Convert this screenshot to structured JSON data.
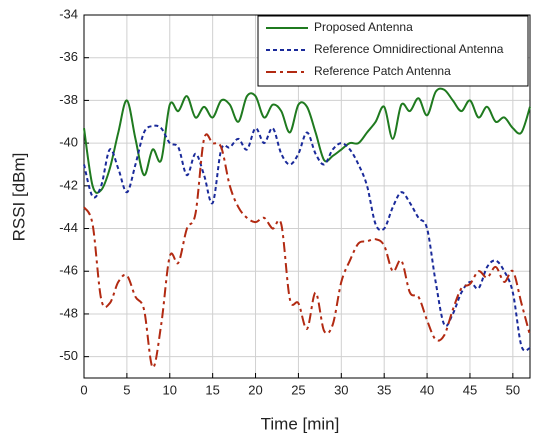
{
  "chart_data": {
    "type": "line",
    "xlabel": "Time [min]",
    "ylabel": "RSSI [dBm]",
    "x": [
      0,
      1,
      2,
      3,
      4,
      5,
      6,
      7,
      8,
      9,
      10,
      11,
      12,
      13,
      14,
      15,
      16,
      17,
      18,
      19,
      20,
      21,
      22,
      23,
      24,
      25,
      26,
      27,
      28,
      29,
      30,
      31,
      32,
      33,
      34,
      35,
      36,
      37,
      38,
      39,
      40,
      41,
      42,
      43,
      44,
      45,
      46,
      47,
      48,
      49,
      50,
      51,
      52
    ],
    "series": [
      {
        "name": "Proposed Antenna",
        "color": "#1f7a1f",
        "dash": "none",
        "values": [
          -39.3,
          -42,
          -42.2,
          -41.2,
          -39.5,
          -38,
          -39.8,
          -41.5,
          -40.3,
          -40.8,
          -38.2,
          -38.5,
          -37.8,
          -38.8,
          -38.3,
          -38.8,
          -38,
          -38.2,
          -39,
          -37.8,
          -37.8,
          -38.8,
          -38.2,
          -38.5,
          -39.5,
          -38.2,
          -38.3,
          -39.5,
          -40.8,
          -40.6,
          -40.3,
          -40,
          -40,
          -39.5,
          -39,
          -38.3,
          -39.8,
          -38.2,
          -38.5,
          -37.9,
          -38.7,
          -37.6,
          -37.5,
          -38,
          -38.5,
          -38,
          -38.8,
          -38.3,
          -39,
          -38.8,
          -39.3,
          -39.5,
          -38.3
        ]
      },
      {
        "name": "Reference Omnidirectional Antenna",
        "color": "#1a2a9a",
        "dash": "4 3",
        "values": [
          -41,
          -42.5,
          -42,
          -40.3,
          -41.2,
          -42.3,
          -41,
          -39.5,
          -39.2,
          -39.3,
          -40,
          -40.2,
          -41.5,
          -40.5,
          -41.5,
          -42.8,
          -40.3,
          -40.2,
          -39.8,
          -40.3,
          -39.3,
          -40,
          -39.3,
          -40.5,
          -41,
          -40.5,
          -39.5,
          -40.5,
          -41,
          -40.3,
          -40,
          -40.3,
          -41,
          -42,
          -43.8,
          -44,
          -43,
          -42.3,
          -42.8,
          -43.5,
          -44,
          -46.5,
          -48.5,
          -48,
          -47,
          -46.5,
          -46.8,
          -45.8,
          -45.5,
          -46,
          -47,
          -49.5,
          -49.6
        ]
      },
      {
        "name": "Reference Patch Antenna",
        "color": "#b22a12",
        "dash": "10 4 3 4",
        "values": [
          -43,
          -43.8,
          -47.3,
          -47.5,
          -46.5,
          -46.2,
          -47.2,
          -47.8,
          -50.5,
          -48.5,
          -45.3,
          -45.6,
          -44,
          -43.3,
          -39.8,
          -40,
          -40.2,
          -42,
          -43,
          -43.5,
          -43.7,
          -43.5,
          -44,
          -43.8,
          -47.3,
          -47.5,
          -48.7,
          -47,
          -48.8,
          -48.5,
          -46.5,
          -45.5,
          -44.7,
          -44.6,
          -44.5,
          -44.8,
          -46,
          -45.5,
          -47,
          -47.2,
          -48.3,
          -49.2,
          -49,
          -47.8,
          -46.8,
          -46.6,
          -46,
          -46.3,
          -45.8,
          -46.5,
          -46,
          -47.5,
          -49
        ]
      }
    ],
    "xlim": [
      0,
      52
    ],
    "xticks": [
      0,
      5,
      10,
      15,
      20,
      25,
      30,
      35,
      40,
      45,
      50
    ],
    "ylim": [
      -51,
      -34
    ],
    "yticks": [
      -34,
      -36,
      -38,
      -40,
      -42,
      -44,
      -46,
      -48,
      -50
    ],
    "grid": true,
    "legend": "upper right"
  }
}
